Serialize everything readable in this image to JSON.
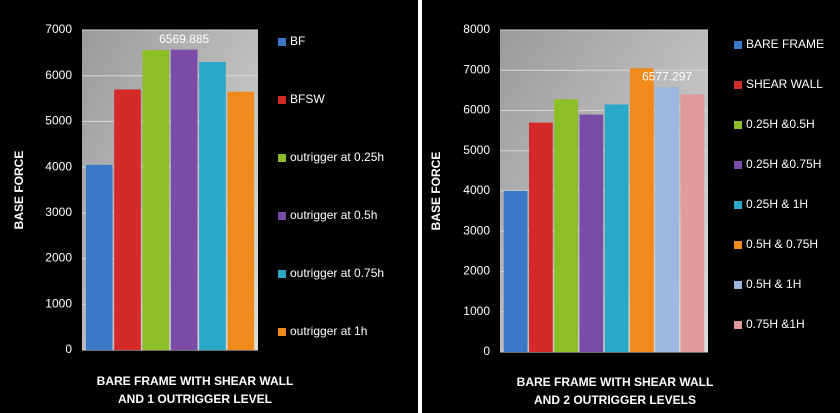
{
  "chart_data": [
    {
      "type": "bar",
      "ylabel": "BASE FORCE",
      "xlabel": [
        "BARE FRAME WITH SHEAR WALL",
        "AND 1 OUTRIGGER LEVEL"
      ],
      "ylim": [
        0,
        7000
      ],
      "yticks": [
        0,
        1000,
        2000,
        3000,
        4000,
        5000,
        6000,
        7000
      ],
      "grid": true,
      "series": [
        {
          "name": "BF",
          "color": "#3b78c8",
          "values": [
            4050
          ]
        },
        {
          "name": "BFSW",
          "color": "#d42a2a",
          "values": [
            5700
          ]
        },
        {
          "name": "outrigger at 0.25h",
          "color": "#8cbf26",
          "values": [
            6560
          ]
        },
        {
          "name": "outrigger at 0.5h",
          "color": "#7b4ba8",
          "values": [
            6569.885
          ],
          "value_labels": [
            "6569.885"
          ]
        },
        {
          "name": "outrigger at 0.75h",
          "color": "#2aa8c8",
          "values": [
            6300
          ]
        },
        {
          "name": "outrigger at 1h",
          "color": "#f08a1a",
          "values": [
            5650
          ]
        }
      ]
    },
    {
      "type": "bar",
      "ylabel": "BASE FORCE",
      "xlabel": [
        "BARE FRAME WITH SHEAR WALL",
        "AND 2 OUTRIGGER LEVELS"
      ],
      "ylim": [
        0,
        8000
      ],
      "yticks": [
        0,
        1000,
        2000,
        3000,
        4000,
        5000,
        6000,
        7000,
        8000
      ],
      "grid": true,
      "series": [
        {
          "name": "BARE FRAME",
          "color": "#3b78c8",
          "values": [
            4000
          ]
        },
        {
          "name": "SHEAR WALL",
          "color": "#d42a2a",
          "values": [
            5700
          ]
        },
        {
          "name": "0.25H &0.5H",
          "color": "#8cbf26",
          "values": [
            6280
          ]
        },
        {
          "name": "0.25H &0.75H",
          "color": "#7b4ba8",
          "values": [
            5900
          ]
        },
        {
          "name": "0.25H & 1H",
          "color": "#2aa8c8",
          "values": [
            6150
          ]
        },
        {
          "name": "0.5H & 0.75H",
          "color": "#f08a1a",
          "values": [
            7050
          ]
        },
        {
          "name": "0.5H & 1H",
          "color": "#9cb8e0",
          "values": [
            6577.297
          ],
          "value_labels": [
            "6577.297"
          ]
        },
        {
          "name": "0.75H &1H",
          "color": "#e09a9a",
          "values": [
            6400
          ]
        }
      ]
    }
  ]
}
